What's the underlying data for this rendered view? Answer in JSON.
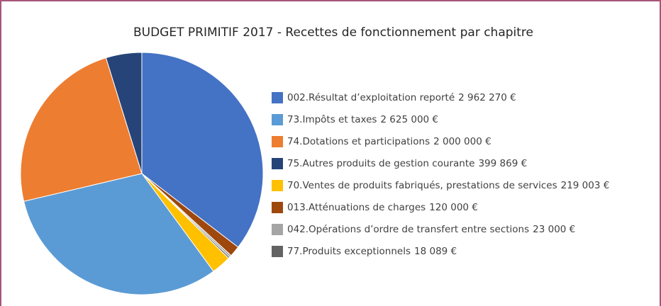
{
  "chart_data": {
    "type": "pie",
    "title": "BUDGET PRIMITIF 2017 - Recettes de fonctionnement par chapitre",
    "categories": [
      "002.Résultat d’exploitation reporté",
      "013.Atténuations de charges",
      "042.Opérations d’ordre de transfert entre sections",
      "77.Produits exceptionnels",
      "70.Ventes de produits fabriqués, prestations de services",
      "73.Impôts et taxes",
      "74.Dotations et participations",
      "75.Autres produits de gestion courante"
    ],
    "values": [
      2962270,
      120000,
      23000,
      18089,
      219003,
      2625000,
      2000000,
      399869
    ],
    "value_labels": [
      "2 962 270 €",
      "120 000 €",
      "23 000 €",
      "18 089 €",
      "219 003 €",
      "2 625 000 €",
      "2 000 000 €",
      "399 869 €"
    ],
    "colors": [
      "#4472c4",
      "#9e480e",
      "#a5a5a5",
      "#636363",
      "#ffc000",
      "#5b9bd5",
      "#ed7d31",
      "#264478"
    ]
  }
}
